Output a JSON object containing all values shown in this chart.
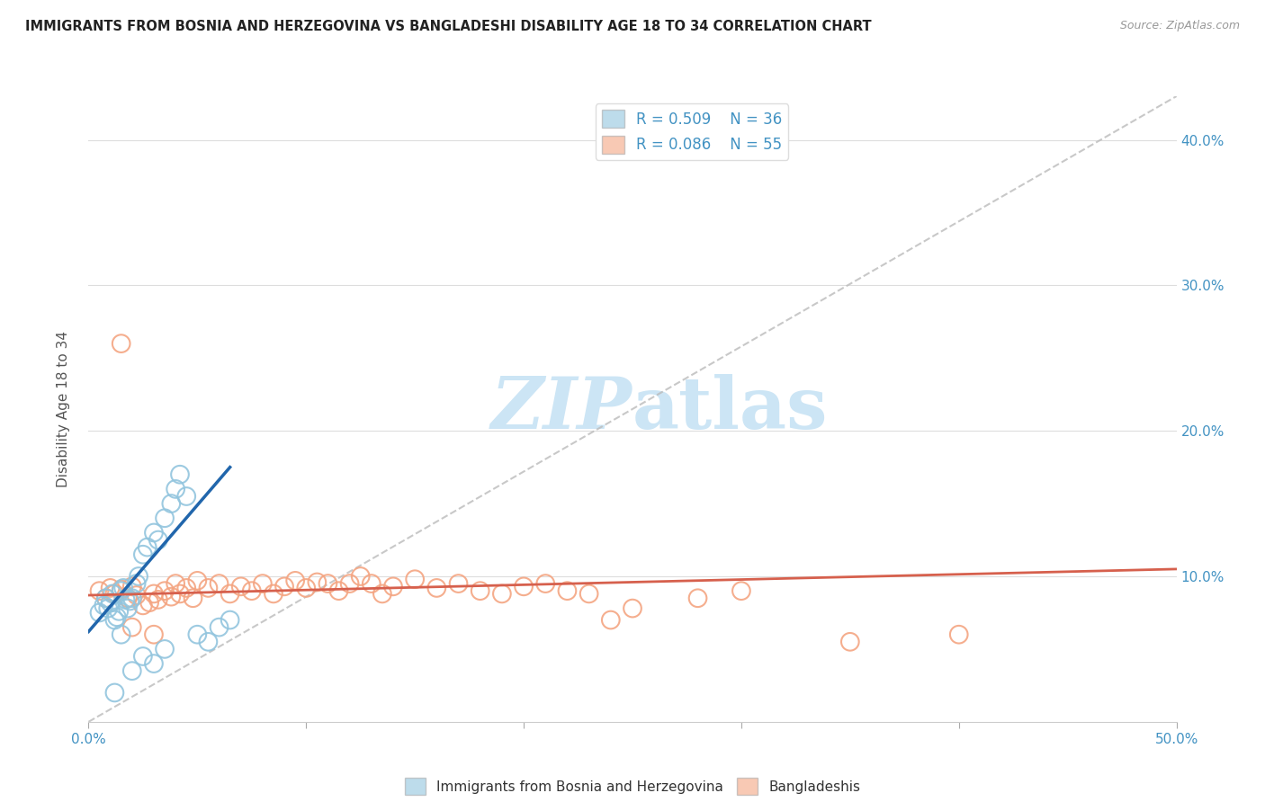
{
  "title": "IMMIGRANTS FROM BOSNIA AND HERZEGOVINA VS BANGLADESHI DISABILITY AGE 18 TO 34 CORRELATION CHART",
  "source": "Source: ZipAtlas.com",
  "ylabel": "Disability Age 18 to 34",
  "xlim": [
    0.0,
    0.5
  ],
  "ylim": [
    0.0,
    0.43
  ],
  "xticks": [
    0.0,
    0.1,
    0.2,
    0.3,
    0.4,
    0.5
  ],
  "yticks": [
    0.1,
    0.2,
    0.3,
    0.4
  ],
  "xticklabels": [
    "0.0%",
    "",
    "",
    "",
    "",
    "50.0%"
  ],
  "yticklabels_right": [
    "10.0%",
    "20.0%",
    "30.0%",
    "40.0%"
  ],
  "legend_r1": "R = 0.509",
  "legend_n1": "N = 36",
  "legend_r2": "R = 0.086",
  "legend_n2": "N = 55",
  "blue_color": "#92c5de",
  "pink_color": "#f4a582",
  "blue_line_color": "#2166ac",
  "pink_line_color": "#d6604d",
  "dashed_line_color": "#bbbbbb",
  "watermark_color": "#cce5f5",
  "blue_scatter_x": [
    0.005,
    0.007,
    0.008,
    0.009,
    0.01,
    0.011,
    0.012,
    0.013,
    0.014,
    0.015,
    0.016,
    0.017,
    0.018,
    0.019,
    0.02,
    0.022,
    0.023,
    0.025,
    0.027,
    0.03,
    0.032,
    0.035,
    0.038,
    0.04,
    0.042,
    0.045,
    0.05,
    0.055,
    0.06,
    0.065,
    0.025,
    0.03,
    0.035,
    0.012,
    0.02,
    0.015
  ],
  "blue_scatter_y": [
    0.075,
    0.08,
    0.085,
    0.078,
    0.082,
    0.088,
    0.07,
    0.072,
    0.076,
    0.09,
    0.092,
    0.084,
    0.078,
    0.083,
    0.085,
    0.095,
    0.1,
    0.115,
    0.12,
    0.13,
    0.125,
    0.14,
    0.15,
    0.16,
    0.17,
    0.155,
    0.06,
    0.055,
    0.065,
    0.07,
    0.045,
    0.04,
    0.05,
    0.02,
    0.035,
    0.06
  ],
  "pink_scatter_x": [
    0.005,
    0.008,
    0.01,
    0.012,
    0.015,
    0.018,
    0.02,
    0.022,
    0.025,
    0.028,
    0.03,
    0.032,
    0.035,
    0.038,
    0.04,
    0.042,
    0.045,
    0.048,
    0.05,
    0.055,
    0.06,
    0.065,
    0.07,
    0.075,
    0.08,
    0.085,
    0.09,
    0.095,
    0.1,
    0.105,
    0.11,
    0.115,
    0.12,
    0.125,
    0.13,
    0.135,
    0.14,
    0.15,
    0.16,
    0.17,
    0.18,
    0.19,
    0.2,
    0.21,
    0.22,
    0.23,
    0.24,
    0.28,
    0.3,
    0.35,
    0.4,
    0.02,
    0.03,
    0.015,
    0.25
  ],
  "pink_scatter_y": [
    0.09,
    0.085,
    0.092,
    0.088,
    0.091,
    0.085,
    0.093,
    0.087,
    0.08,
    0.082,
    0.088,
    0.084,
    0.09,
    0.086,
    0.095,
    0.088,
    0.092,
    0.085,
    0.097,
    0.092,
    0.095,
    0.088,
    0.093,
    0.09,
    0.095,
    0.088,
    0.093,
    0.097,
    0.092,
    0.096,
    0.095,
    0.09,
    0.095,
    0.1,
    0.095,
    0.088,
    0.093,
    0.098,
    0.092,
    0.095,
    0.09,
    0.088,
    0.093,
    0.095,
    0.09,
    0.088,
    0.07,
    0.085,
    0.09,
    0.055,
    0.06,
    0.065,
    0.06,
    0.26,
    0.078
  ],
  "blue_line_x": [
    0.0,
    0.065
  ],
  "blue_line_y": [
    0.062,
    0.175
  ],
  "pink_line_x": [
    0.0,
    0.5
  ],
  "pink_line_y": [
    0.087,
    0.105
  ],
  "dashed_line_x": [
    0.0,
    0.5
  ],
  "dashed_line_y": [
    0.0,
    0.43
  ]
}
